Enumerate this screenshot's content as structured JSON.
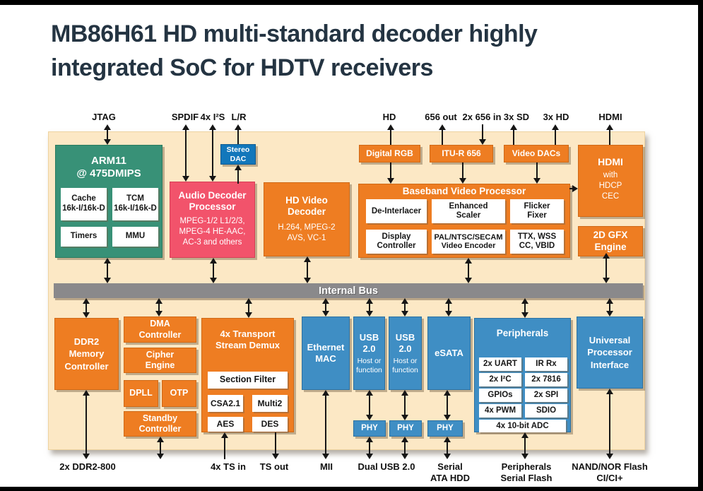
{
  "title": "MB86H61 HD multi-standard decoder highly\nintegrated SoC for HDTV receivers",
  "io": {
    "jtag": "JTAG",
    "spdif": "SPDIF",
    "i2s": "4x I²S",
    "lr": "L/R",
    "hd": "HD",
    "out656": "656 out",
    "in656": "2x 656 in",
    "sd3x": "3x SD",
    "hd3x": "3x HD",
    "hdmi": "HDMI",
    "ddr2": "2x DDR2-800",
    "tsin": "4x TS in",
    "tsout": "TS out",
    "mii": "MII",
    "dualusb": "Dual USB 2.0",
    "sata": "Serial\nATA HDD",
    "periflash": "Peripherals\nSerial Flash",
    "nand": "NAND/NOR Flash\nCI/CI+"
  },
  "blocks": {
    "arm11": {
      "title": "ARM11\n@ 475DMIPS",
      "subs": [
        "Cache\n16k-I/16k-D",
        "TCM\n16k-I/16k-D",
        "Timers",
        "MMU"
      ]
    },
    "stereo_dac": {
      "title": "Stereo\nDAC"
    },
    "audio": {
      "title": "Audio Decoder\nProcessor",
      "detail": "MPEG-1/2 L1/2/3,\nMPEG-4 HE-AAC,\nAC-3 and others"
    },
    "hd_video": {
      "title": "HD Video\nDecoder",
      "detail": "H.264, MPEG-2\nAVS, VC-1"
    },
    "digital_rgb": {
      "title": "Digital RGB"
    },
    "itu656": {
      "title": "ITU-R 656"
    },
    "video_dacs": {
      "title": "Video DACs"
    },
    "bvp": {
      "title": "Baseband Video Processor",
      "subs": [
        "De-Interlacer",
        "Enhanced\nScaler",
        "Flicker\nFixer",
        "Display\nController",
        "PAL/NTSC/SECAM\nVideo Encoder",
        "TTX, WSS\nCC, VBID"
      ]
    },
    "hdmi": {
      "title": "HDMI",
      "detail": "with\nHDCP\nCEC"
    },
    "gfx": {
      "title": "2D GFX\nEngine"
    },
    "bus": {
      "title": "Internal Bus"
    },
    "ddr2": {
      "title": "DDR2\nMemory\nController"
    },
    "dma": {
      "title": "DMA\nController"
    },
    "cipher": {
      "title": "Cipher\nEngine"
    },
    "dpll": {
      "title": "DPLL"
    },
    "otp": {
      "title": "OTP"
    },
    "standby": {
      "title": "Standby\nController"
    },
    "demux": {
      "title": "4x Transport\nStream Demux",
      "subs": [
        "Section Filter",
        "CSA2.1",
        "Multi2",
        "AES",
        "DES"
      ]
    },
    "ethernet": {
      "title": "Ethernet\nMAC"
    },
    "usb": {
      "title": "USB\n2.0",
      "detail": "Host or\nfunction"
    },
    "esata": {
      "title": "eSATA"
    },
    "phy": {
      "title": "PHY"
    },
    "peripherals": {
      "title": "Peripherals",
      "subs": [
        "2x UART",
        "IR Rx",
        "2x I²C",
        "2x 7816",
        "GPIOs",
        "2x SPI",
        "4x PWM",
        "SDIO",
        "4x 10-bit ADC"
      ]
    },
    "upi": {
      "title": "Universal\nProcessor\nInterface"
    }
  },
  "colors": {
    "orange": "#ee7d22",
    "green": "#389177",
    "pink": "#f2536b",
    "blue": "#3f8ec4",
    "dac_blue": "#1277bb",
    "bus_gray": "#8a898b",
    "panel_beige": "#fce8c5",
    "title_text": "#243442"
  }
}
